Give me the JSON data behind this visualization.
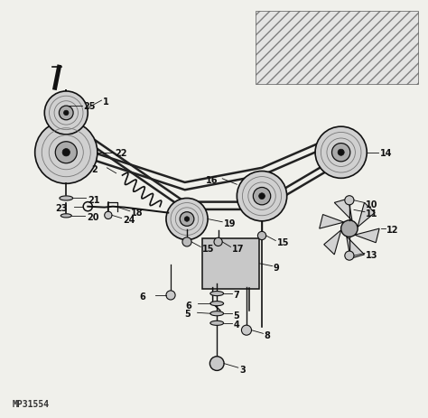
{
  "bg_color": "#f0f0eb",
  "watermark": "MP31554",
  "fig_width": 4.74,
  "fig_height": 4.64,
  "dpi": 100,
  "label_fontsize": 7,
  "line_color": "#111111",
  "belt_color": "#222222",
  "pulley_color": "#888888",
  "pulley_edge": "#111111"
}
